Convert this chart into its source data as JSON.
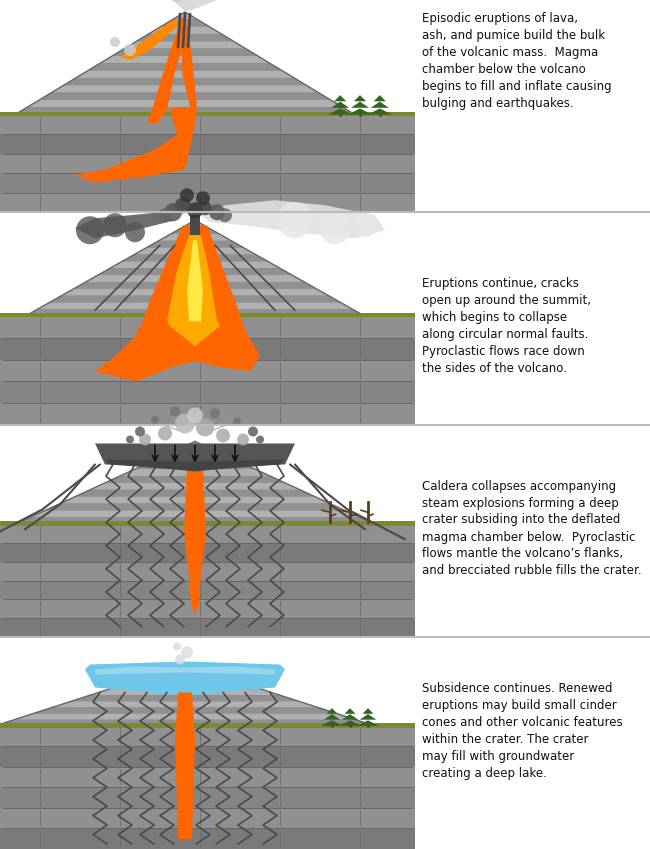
{
  "background_color": "#ffffff",
  "panel_bg_left": "#d8d8d8",
  "ground_color": "#888888",
  "lava_orange": "#FF6600",
  "lava_yellow": "#FFAA00",
  "tree_color": "#2d6e2d",
  "text_color": "#000000",
  "blue_water": "#6ec6e8",
  "olive_ground": "#7a8c2a",
  "panels": [
    {
      "text": "Episodic eruptions of lava,\nash, and pumice build the bulk\nof the volcanic mass.  Magma\nchamber below the volcano\nbegins to fill and inflate causing\nbulging and earthquakes.",
      "stage": 1
    },
    {
      "text": "Eruptions continue, cracks\nopen up around the summit,\nwhich begins to collapse\nalong circular normal faults.\nPyroclastic flows race down\nthe sides of the volcano.",
      "stage": 2
    },
    {
      "text": "Caldera collapses accompanying\nsteam explosions forming a deep\ncrater subsiding into the deflated\nmagma chamber below.  Pyroclastic\nflows mantle the volcano’s flanks,\nand brecciated rubble fills the crater.",
      "stage": 3
    },
    {
      "text": "Subsidence continues. Renewed\neruptions may build small cinder\ncones and other volcanic features\nwithin the crater. The crater\nmay fill with groundwater\ncreating a deep lake.",
      "stage": 4
    }
  ],
  "figsize": [
    6.5,
    8.49
  ],
  "dpi": 100
}
